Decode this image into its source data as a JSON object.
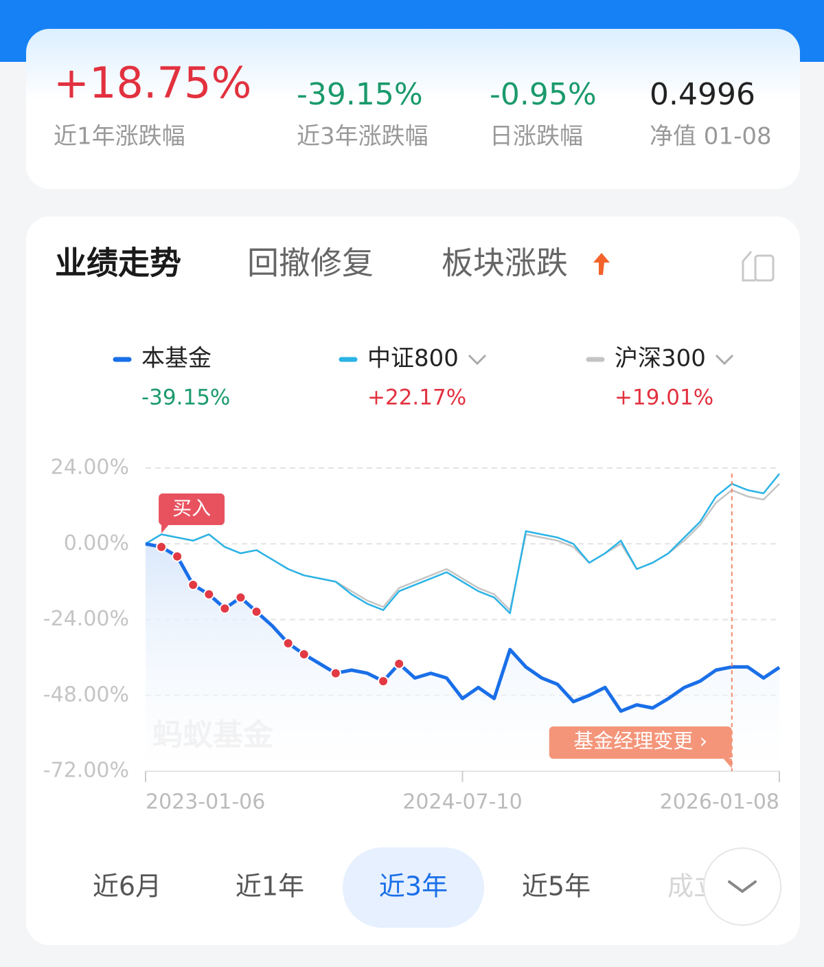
{
  "header": {
    "stats": [
      {
        "value": "+18.75%",
        "label": "近1年涨跌幅",
        "color": "#e2313f"
      },
      {
        "value": "-39.15%",
        "label": "近3年涨跌幅",
        "color": "#1b9a6c"
      },
      {
        "value": "-0.95%",
        "label": "日涨跌幅",
        "color": "#1b9a6c"
      },
      {
        "value": "0.4996",
        "label": "净值 01-08",
        "color": "#222222"
      }
    ]
  },
  "tabs": [
    "业绩走势",
    "回撤修复",
    "板块涨跌"
  ],
  "selected_tab": 0,
  "chart_data": {
    "type": "line",
    "watermark": "蚂蚁基金",
    "categories": [
      "2023-01-06",
      null,
      null,
      null,
      null,
      null,
      null,
      null,
      null,
      null,
      null,
      null,
      null,
      null,
      null,
      null,
      null,
      null,
      null,
      null,
      "2024-07-10",
      null,
      null,
      null,
      null,
      null,
      null,
      null,
      null,
      null,
      null,
      null,
      null,
      null,
      null,
      null,
      null,
      null,
      null,
      null,
      "2026-01-08"
    ],
    "series": [
      {
        "name": "本基金",
        "color": "#1a6fe8",
        "change": "-39.15%",
        "change_color": "#1b9a6c",
        "values": [
          0,
          -1,
          -4,
          -13,
          -16,
          -20.5,
          -17,
          -21.5,
          -26,
          -31.5,
          -35,
          -38,
          -41,
          -40,
          -41,
          -43.5,
          -38,
          -42.5,
          -41,
          -42.5,
          -49,
          -45.5,
          -49,
          -33.5,
          -39,
          -42.5,
          -44.5,
          -50,
          -48,
          -45.5,
          -53,
          -51,
          -52,
          -49,
          -45.5,
          -43.5,
          -40,
          -39,
          -39,
          -42.5,
          -39.15
        ]
      },
      {
        "name": "中证800",
        "color": "#2bb3e6",
        "change": "+22.17%",
        "change_color": "#e2313f",
        "values": [
          0,
          3,
          2,
          1,
          3,
          -1,
          -3,
          -2,
          -5,
          -8,
          -10,
          -11,
          -12,
          -16,
          -19,
          -21,
          -15,
          -13,
          -11,
          -9,
          -12,
          -15,
          -17,
          -22,
          4,
          3,
          2,
          0,
          -6,
          -3,
          1,
          -8,
          -6,
          -3,
          2,
          7,
          15,
          19,
          17,
          16,
          22.17
        ]
      },
      {
        "name": "沪深300",
        "color": "#c4c4c4",
        "change": "+19.01%",
        "change_color": "#e2313f",
        "values": [
          0,
          3,
          2,
          1,
          3,
          -1,
          -3,
          -2,
          -5,
          -8,
          -10,
          -11,
          -12,
          -15,
          -18,
          -20,
          -14,
          -12,
          -10,
          -8,
          -11,
          -14,
          -16,
          -21,
          3,
          2,
          1,
          -1,
          -6,
          -3,
          0,
          -8,
          -6,
          -3,
          1,
          6,
          13,
          17,
          15,
          14,
          19.01
        ]
      }
    ],
    "buy_points": [
      1,
      2,
      3,
      4,
      5,
      6,
      7,
      9,
      10,
      12,
      15,
      16
    ],
    "annotations": [
      {
        "text": "买入",
        "index": 1,
        "color": "#e8525f"
      },
      {
        "text": "基金经理变更 ›",
        "index": 37,
        "color": "#f4957a"
      }
    ],
    "ylim": [
      -72,
      24
    ],
    "yticks": [
      {
        "value": 24,
        "label": "24.00%"
      },
      {
        "value": 0,
        "label": "0.00%"
      },
      {
        "value": -24,
        "label": "-24.00%"
      },
      {
        "value": -48,
        "label": "-48.00%"
      },
      {
        "value": -72,
        "label": "-72.00%"
      }
    ],
    "grid": true
  },
  "periods": [
    "近6月",
    "近1年",
    "近3年",
    "近5年",
    "成立"
  ],
  "selected_period": 2
}
